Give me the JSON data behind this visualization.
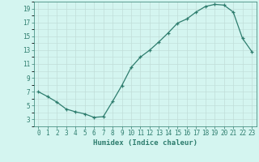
{
  "x": [
    0,
    1,
    2,
    3,
    4,
    5,
    6,
    7,
    8,
    9,
    10,
    11,
    12,
    13,
    14,
    15,
    16,
    17,
    18,
    19,
    20,
    21,
    22,
    23
  ],
  "y": [
    7,
    6.3,
    5.5,
    4.5,
    4.1,
    3.8,
    3.3,
    3.4,
    5.6,
    7.9,
    10.5,
    12.0,
    13.0,
    14.2,
    15.5,
    16.9,
    17.5,
    18.5,
    19.3,
    19.6,
    19.5,
    18.5,
    14.7,
    12.8
  ],
  "line_color": "#2e7d6e",
  "marker": "+",
  "marker_size": 3,
  "bg_color": "#d4f5f0",
  "grid_color": "#c0ddd8",
  "xlabel": "Humidex (Indice chaleur)",
  "xlim": [
    -0.5,
    23.5
  ],
  "ylim": [
    2,
    20
  ],
  "yticks": [
    3,
    5,
    7,
    9,
    11,
    13,
    15,
    17,
    19
  ],
  "xticks": [
    0,
    1,
    2,
    3,
    4,
    5,
    6,
    7,
    8,
    9,
    10,
    11,
    12,
    13,
    14,
    15,
    16,
    17,
    18,
    19,
    20,
    21,
    22,
    23
  ],
  "label_fontsize": 6.5,
  "tick_fontsize": 5.5
}
